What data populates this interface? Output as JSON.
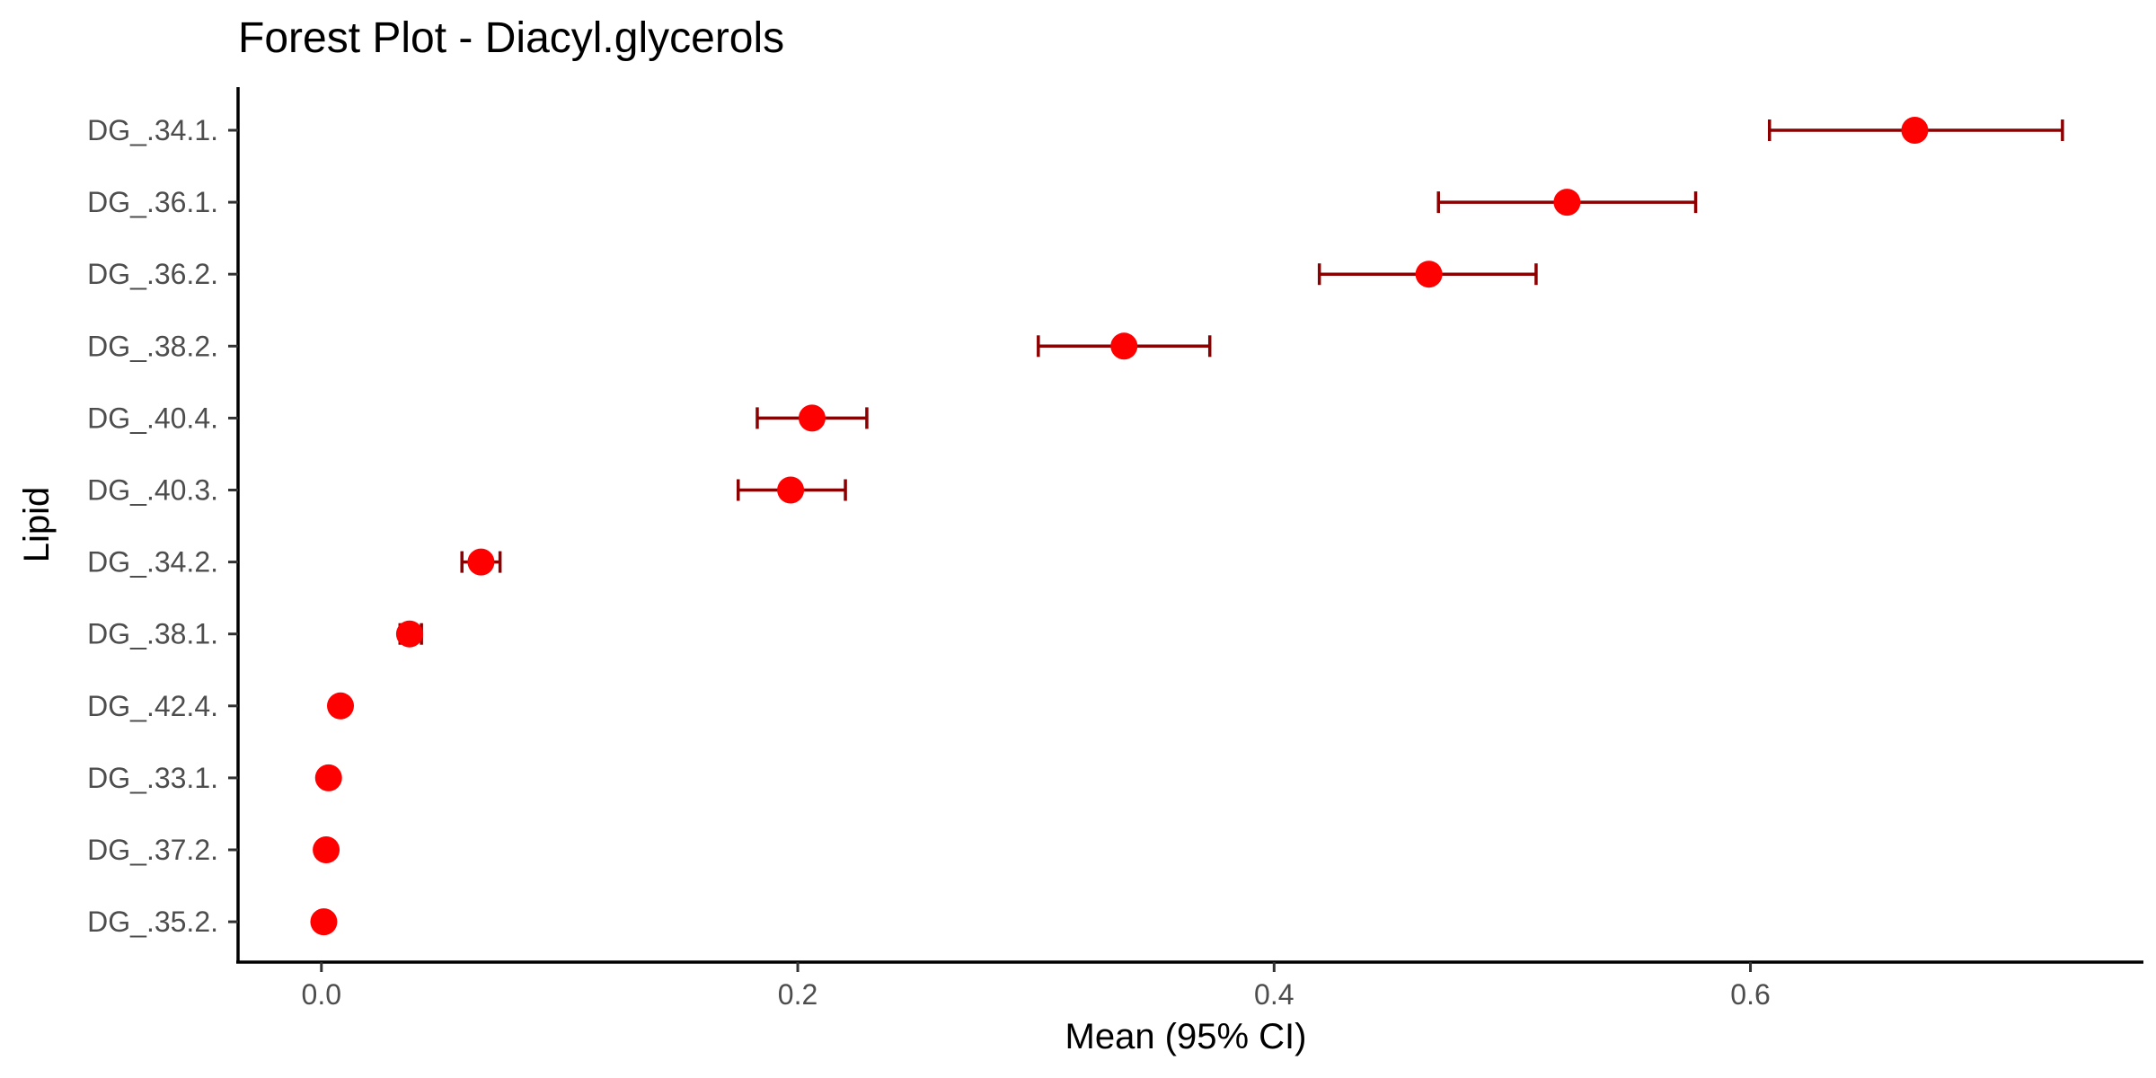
{
  "chart_data": {
    "type": "forest",
    "title": "Forest Plot - Diacyl.glycerols",
    "xlabel": "Mean (95% CI)",
    "ylabel": "Lipid",
    "xlim": [
      -0.035,
      0.765
    ],
    "x_ticks": [
      0.0,
      0.2,
      0.4,
      0.6
    ],
    "x_tick_labels": [
      "0.0",
      "0.2",
      "0.4",
      "0.6"
    ],
    "grid": false,
    "legend": "none",
    "point_color": "#ff0000",
    "ci_color": "#8b0000",
    "rows": [
      {
        "label": "DG_.34.1.",
        "mean": 0.669,
        "lower": 0.608,
        "upper": 0.731
      },
      {
        "label": "DG_.36.1.",
        "mean": 0.523,
        "lower": 0.469,
        "upper": 0.577
      },
      {
        "label": "DG_.36.2.",
        "mean": 0.465,
        "lower": 0.419,
        "upper": 0.51
      },
      {
        "label": "DG_.38.2.",
        "mean": 0.337,
        "lower": 0.301,
        "upper": 0.373
      },
      {
        "label": "DG_.40.4.",
        "mean": 0.206,
        "lower": 0.183,
        "upper": 0.229
      },
      {
        "label": "DG_.40.3.",
        "mean": 0.197,
        "lower": 0.175,
        "upper": 0.22
      },
      {
        "label": "DG_.34.2.",
        "mean": 0.067,
        "lower": 0.059,
        "upper": 0.075
      },
      {
        "label": "DG_.38.1.",
        "mean": 0.037,
        "lower": 0.033,
        "upper": 0.042
      },
      {
        "label": "DG_.42.4.",
        "mean": 0.008,
        "lower": 0.006,
        "upper": 0.009
      },
      {
        "label": "DG_.33.1.",
        "mean": 0.003,
        "lower": 0.002,
        "upper": 0.004
      },
      {
        "label": "DG_.37.2.",
        "mean": 0.002,
        "lower": 0.001,
        "upper": 0.003
      },
      {
        "label": "DG_.35.2.",
        "mean": 0.001,
        "lower": 0.0005,
        "upper": 0.0015
      }
    ]
  }
}
